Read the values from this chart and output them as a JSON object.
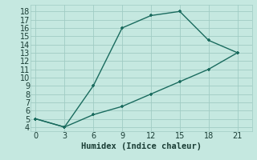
{
  "xlabel": "Humidex (Indice chaleur)",
  "line1_x": [
    0,
    3,
    6,
    9,
    12,
    15,
    18,
    21
  ],
  "line1_y": [
    5,
    4,
    9,
    16,
    17.5,
    18,
    14.5,
    13
  ],
  "line2_x": [
    0,
    3,
    6,
    9,
    12,
    15,
    18,
    21
  ],
  "line2_y": [
    5,
    4,
    5.5,
    6.5,
    8,
    9.5,
    11,
    13
  ],
  "line1_markers": [
    0,
    6,
    9,
    12,
    15,
    21
  ],
  "line2_markers": [],
  "line_color": "#1a6b5e",
  "bg_color": "#c5e8e0",
  "grid_color": "#a0ccc4",
  "xlim": [
    -0.5,
    22.5
  ],
  "ylim": [
    3.5,
    18.8
  ],
  "xticks": [
    0,
    3,
    6,
    9,
    12,
    15,
    18,
    21
  ],
  "yticks": [
    4,
    5,
    6,
    7,
    8,
    9,
    10,
    11,
    12,
    13,
    14,
    15,
    16,
    17,
    18
  ],
  "markersize": 3.5,
  "linewidth": 1.0,
  "xlabel_fontsize": 7.5,
  "tick_fontsize": 7
}
